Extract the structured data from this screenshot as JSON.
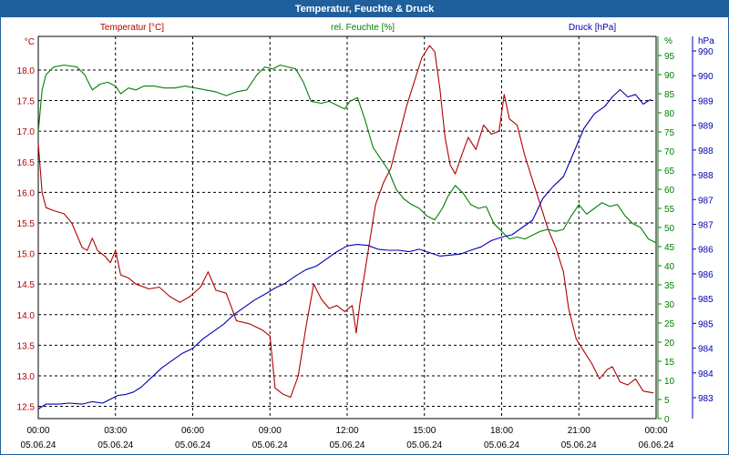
{
  "window": {
    "title": "Temperatur, Feuchte & Druck"
  },
  "colors": {
    "temperature": "#b00000",
    "humidity": "#008000",
    "pressure": "#0000b0",
    "frame": "#1f5f9c",
    "grid": "#000000"
  },
  "chart_data": {
    "type": "line",
    "title": "Temperatur, Feuchte & Druck",
    "x_ticks": [
      {
        "time": "00:00",
        "date": "05.06.24"
      },
      {
        "time": "03:00",
        "date": "05.06.24"
      },
      {
        "time": "06:00",
        "date": "05.06.24"
      },
      {
        "time": "09:00",
        "date": "05.06.24"
      },
      {
        "time": "12:00",
        "date": "05.06.24"
      },
      {
        "time": "15:00",
        "date": "05.06.24"
      },
      {
        "time": "18:00",
        "date": "05.06.24"
      },
      {
        "time": "21:00",
        "date": "05.06.24"
      },
      {
        "time": "00:00",
        "date": "06.06.24"
      }
    ],
    "xlim_hours": [
      0,
      24
    ],
    "axes": {
      "temperature": {
        "unit_label": "°C",
        "legend": "Temperatur [°C]",
        "range": [
          12.3,
          18.55
        ],
        "ticks": [
          "18.0",
          "17.5",
          "17.0",
          "16.5",
          "16.0",
          "15.5",
          "15.0",
          "14.5",
          "14.0",
          "13.5",
          "13.0",
          "12.5"
        ]
      },
      "humidity": {
        "unit_label": "%",
        "legend": "rel. Feuchte [%]",
        "range": [
          0,
          100
        ],
        "ticks": [
          "95",
          "90",
          "85",
          "80",
          "75",
          "70",
          "65",
          "60",
          "55",
          "50",
          "45",
          "40",
          "35",
          "30",
          "25",
          "20",
          "15",
          "10",
          "5",
          "0"
        ]
      },
      "pressure": {
        "unit_label": "hPa",
        "legend": "Druck [hPa]",
        "range": [
          982.4,
          990.3
        ],
        "ticks": [
          "990",
          "990",
          "989",
          "989",
          "988",
          "988",
          "987",
          "987",
          "986",
          "986",
          "985",
          "985",
          "984",
          "984",
          "983"
        ]
      }
    },
    "series": [
      {
        "name": "Temperatur [°C]",
        "axis": "temperature",
        "color": "#b00000",
        "points": [
          [
            0,
            16.8
          ],
          [
            0.15,
            16.0
          ],
          [
            0.3,
            15.75
          ],
          [
            0.6,
            15.7
          ],
          [
            1.0,
            15.65
          ],
          [
            1.3,
            15.5
          ],
          [
            1.5,
            15.3
          ],
          [
            1.7,
            15.1
          ],
          [
            1.9,
            15.05
          ],
          [
            2.1,
            15.25
          ],
          [
            2.3,
            15.05
          ],
          [
            2.6,
            14.95
          ],
          [
            2.8,
            14.85
          ],
          [
            3.0,
            15.05
          ],
          [
            3.2,
            14.65
          ],
          [
            3.5,
            14.6
          ],
          [
            3.8,
            14.5
          ],
          [
            4.3,
            14.42
          ],
          [
            4.7,
            14.45
          ],
          [
            5.1,
            14.3
          ],
          [
            5.5,
            14.2
          ],
          [
            5.9,
            14.3
          ],
          [
            6.3,
            14.45
          ],
          [
            6.6,
            14.7
          ],
          [
            6.9,
            14.4
          ],
          [
            7.3,
            14.35
          ],
          [
            7.7,
            13.9
          ],
          [
            8.2,
            13.85
          ],
          [
            8.7,
            13.75
          ],
          [
            9.0,
            13.65
          ],
          [
            9.2,
            12.8
          ],
          [
            9.5,
            12.7
          ],
          [
            9.8,
            12.65
          ],
          [
            10.1,
            13.0
          ],
          [
            10.4,
            13.8
          ],
          [
            10.7,
            14.5
          ],
          [
            11.0,
            14.25
          ],
          [
            11.3,
            14.1
          ],
          [
            11.6,
            14.15
          ],
          [
            11.9,
            14.05
          ],
          [
            12.2,
            14.15
          ],
          [
            12.35,
            13.7
          ],
          [
            12.5,
            14.2
          ],
          [
            12.8,
            15.0
          ],
          [
            13.1,
            15.8
          ],
          [
            13.4,
            16.15
          ],
          [
            13.7,
            16.4
          ],
          [
            14.0,
            16.9
          ],
          [
            14.3,
            17.4
          ],
          [
            14.6,
            17.8
          ],
          [
            14.9,
            18.2
          ],
          [
            15.2,
            18.4
          ],
          [
            15.4,
            18.3
          ],
          [
            15.6,
            17.7
          ],
          [
            15.8,
            16.9
          ],
          [
            16.0,
            16.45
          ],
          [
            16.2,
            16.3
          ],
          [
            16.4,
            16.55
          ],
          [
            16.7,
            16.9
          ],
          [
            17.0,
            16.7
          ],
          [
            17.3,
            17.1
          ],
          [
            17.6,
            16.95
          ],
          [
            17.9,
            17.0
          ],
          [
            18.1,
            17.6
          ],
          [
            18.3,
            17.2
          ],
          [
            18.6,
            17.1
          ],
          [
            18.9,
            16.6
          ],
          [
            19.2,
            16.2
          ],
          [
            19.5,
            15.8
          ],
          [
            19.8,
            15.4
          ],
          [
            20.1,
            15.1
          ],
          [
            20.4,
            14.7
          ],
          [
            20.6,
            14.1
          ],
          [
            20.9,
            13.6
          ],
          [
            21.2,
            13.4
          ],
          [
            21.5,
            13.2
          ],
          [
            21.8,
            12.95
          ],
          [
            22.1,
            13.1
          ],
          [
            22.3,
            13.15
          ],
          [
            22.6,
            12.9
          ],
          [
            22.9,
            12.85
          ],
          [
            23.2,
            12.95
          ],
          [
            23.5,
            12.75
          ],
          [
            23.9,
            12.72
          ]
        ]
      },
      {
        "name": "rel. Feuchte [%]",
        "axis": "humidity",
        "color": "#008000",
        "points": [
          [
            0,
            75
          ],
          [
            0.15,
            86
          ],
          [
            0.3,
            90
          ],
          [
            0.6,
            92
          ],
          [
            1.0,
            92.5
          ],
          [
            1.5,
            92
          ],
          [
            1.8,
            90
          ],
          [
            2.1,
            86
          ],
          [
            2.4,
            87.5
          ],
          [
            2.7,
            88
          ],
          [
            3.0,
            87
          ],
          [
            3.2,
            85
          ],
          [
            3.5,
            86.5
          ],
          [
            3.8,
            86
          ],
          [
            4.1,
            87
          ],
          [
            4.5,
            87
          ],
          [
            4.9,
            86.5
          ],
          [
            5.3,
            86.5
          ],
          [
            5.7,
            87
          ],
          [
            6.1,
            86.5
          ],
          [
            6.5,
            86
          ],
          [
            6.9,
            85.5
          ],
          [
            7.3,
            84.5
          ],
          [
            7.7,
            85.5
          ],
          [
            8.1,
            86
          ],
          [
            8.5,
            90
          ],
          [
            8.8,
            92
          ],
          [
            9.1,
            91.5
          ],
          [
            9.4,
            92.5
          ],
          [
            9.7,
            92
          ],
          [
            10.0,
            91.5
          ],
          [
            10.3,
            88
          ],
          [
            10.6,
            83
          ],
          [
            11.0,
            82.5
          ],
          [
            11.3,
            83
          ],
          [
            11.6,
            82
          ],
          [
            11.9,
            81
          ],
          [
            12.1,
            83
          ],
          [
            12.4,
            84
          ],
          [
            12.7,
            78
          ],
          [
            13.0,
            71
          ],
          [
            13.3,
            68
          ],
          [
            13.6,
            65
          ],
          [
            13.9,
            60
          ],
          [
            14.2,
            57.5
          ],
          [
            14.5,
            56
          ],
          [
            14.8,
            55
          ],
          [
            15.1,
            53
          ],
          [
            15.4,
            52
          ],
          [
            15.7,
            55
          ],
          [
            15.9,
            58
          ],
          [
            16.2,
            61
          ],
          [
            16.5,
            59
          ],
          [
            16.8,
            56
          ],
          [
            17.1,
            55
          ],
          [
            17.4,
            55.5
          ],
          [
            17.7,
            51
          ],
          [
            18.0,
            49
          ],
          [
            18.3,
            47
          ],
          [
            18.6,
            47.5
          ],
          [
            18.9,
            47
          ],
          [
            19.2,
            48
          ],
          [
            19.5,
            49
          ],
          [
            19.8,
            49.5
          ],
          [
            20.1,
            49
          ],
          [
            20.4,
            49.5
          ],
          [
            20.7,
            53
          ],
          [
            21.0,
            56
          ],
          [
            21.3,
            53.5
          ],
          [
            21.6,
            55
          ],
          [
            21.9,
            56.5
          ],
          [
            22.2,
            55.5
          ],
          [
            22.5,
            56
          ],
          [
            22.8,
            53
          ],
          [
            23.1,
            51
          ],
          [
            23.4,
            50
          ],
          [
            23.7,
            47
          ],
          [
            24.0,
            46
          ]
        ]
      },
      {
        "name": "Druck [hPa]",
        "axis": "pressure",
        "color": "#0000b0",
        "points": [
          [
            0,
            982.6
          ],
          [
            0.3,
            982.7
          ],
          [
            0.8,
            982.7
          ],
          [
            1.2,
            982.72
          ],
          [
            1.7,
            982.7
          ],
          [
            2.1,
            982.75
          ],
          [
            2.5,
            982.72
          ],
          [
            2.8,
            982.8
          ],
          [
            3.1,
            982.88
          ],
          [
            3.4,
            982.9
          ],
          [
            3.7,
            982.95
          ],
          [
            4.0,
            983.05
          ],
          [
            4.4,
            983.25
          ],
          [
            4.8,
            983.45
          ],
          [
            5.2,
            983.6
          ],
          [
            5.6,
            983.75
          ],
          [
            6.0,
            983.85
          ],
          [
            6.4,
            984.05
          ],
          [
            6.8,
            984.2
          ],
          [
            7.2,
            984.35
          ],
          [
            7.6,
            984.55
          ],
          [
            8.0,
            984.7
          ],
          [
            8.4,
            984.85
          ],
          [
            8.8,
            984.97
          ],
          [
            9.2,
            985.1
          ],
          [
            9.6,
            985.2
          ],
          [
            10.0,
            985.35
          ],
          [
            10.4,
            985.48
          ],
          [
            10.8,
            985.55
          ],
          [
            11.2,
            985.7
          ],
          [
            11.6,
            985.85
          ],
          [
            12.0,
            985.97
          ],
          [
            12.4,
            986.0
          ],
          [
            12.8,
            985.98
          ],
          [
            13.2,
            985.9
          ],
          [
            13.6,
            985.88
          ],
          [
            14.0,
            985.88
          ],
          [
            14.4,
            985.85
          ],
          [
            14.8,
            985.9
          ],
          [
            15.2,
            985.83
          ],
          [
            15.6,
            985.76
          ],
          [
            16.0,
            985.78
          ],
          [
            16.4,
            985.8
          ],
          [
            16.8,
            985.88
          ],
          [
            17.2,
            985.95
          ],
          [
            17.6,
            986.08
          ],
          [
            18.0,
            986.15
          ],
          [
            18.4,
            986.2
          ],
          [
            18.8,
            986.35
          ],
          [
            19.2,
            986.5
          ],
          [
            19.6,
            986.95
          ],
          [
            20.0,
            987.2
          ],
          [
            20.4,
            987.4
          ],
          [
            20.8,
            987.9
          ],
          [
            21.2,
            988.4
          ],
          [
            21.6,
            988.7
          ],
          [
            22.0,
            988.85
          ],
          [
            22.3,
            989.05
          ],
          [
            22.6,
            989.2
          ],
          [
            22.9,
            989.05
          ],
          [
            23.2,
            989.1
          ],
          [
            23.5,
            988.9
          ],
          [
            23.8,
            989.0
          ]
        ]
      }
    ]
  }
}
